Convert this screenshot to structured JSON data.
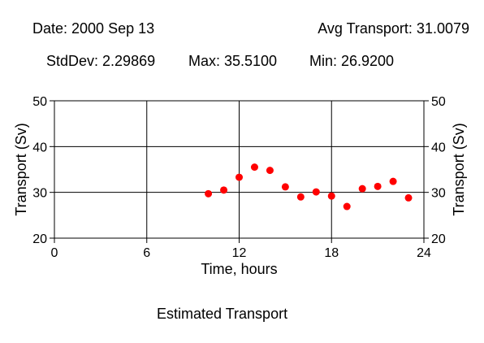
{
  "header": {
    "date": "Date: 2000 Sep 13",
    "avg": "Avg Transport: 31.0079",
    "stddev": "StdDev: 2.29869",
    "max": "Max: 35.5100",
    "min": "Min: 26.9200"
  },
  "caption": "Estimated Transport",
  "chart_data": {
    "type": "scatter",
    "xlabel": "Time, hours",
    "ylabel": "Transport (Sv)",
    "xlim": [
      0,
      24
    ],
    "ylim": [
      20,
      50
    ],
    "xticks": [
      0,
      6,
      12,
      18,
      24
    ],
    "yticks": [
      20,
      30,
      40,
      50
    ],
    "grid": true,
    "marker_color": "#ff0000",
    "points": [
      {
        "x": 10,
        "y": 29.7
      },
      {
        "x": 11,
        "y": 30.5
      },
      {
        "x": 12,
        "y": 33.3
      },
      {
        "x": 13,
        "y": 35.51
      },
      {
        "x": 14,
        "y": 34.8
      },
      {
        "x": 15,
        "y": 31.2
      },
      {
        "x": 16,
        "y": 29.0
      },
      {
        "x": 17,
        "y": 30.1
      },
      {
        "x": 18,
        "y": 29.2
      },
      {
        "x": 19,
        "y": 26.92
      },
      {
        "x": 20,
        "y": 30.8
      },
      {
        "x": 21,
        "y": 31.3
      },
      {
        "x": 22,
        "y": 32.4
      },
      {
        "x": 23,
        "y": 28.8
      }
    ]
  }
}
